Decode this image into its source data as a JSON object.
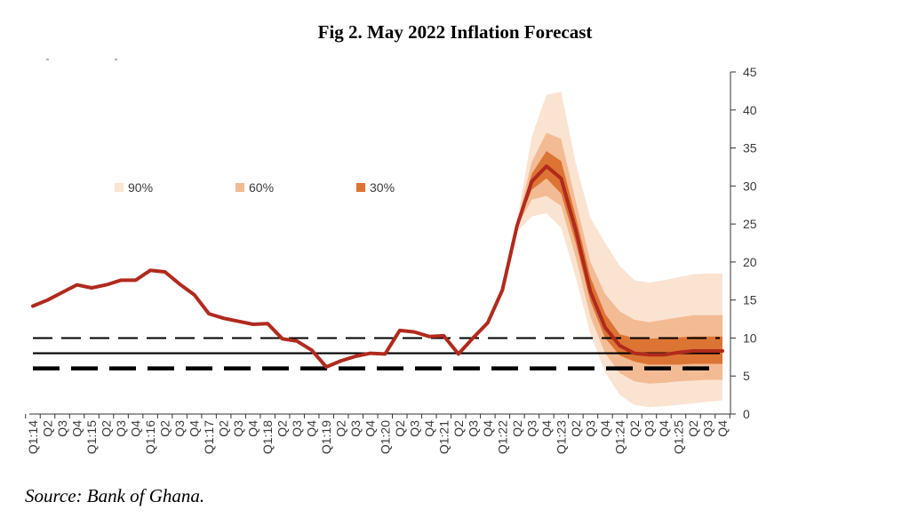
{
  "title": "Fig 2. May 2022 Inflation Forecast",
  "source": "Source: Bank of Ghana.",
  "chart_data": {
    "type": "line",
    "title": "Fig 2. May 2022 Inflation Forecast",
    "x_labels": [
      "Q1:14",
      "Q2",
      "Q3",
      "Q4",
      "Q1:15",
      "Q2",
      "Q3",
      "Q4",
      "Q1:16",
      "Q2",
      "Q3",
      "Q4",
      "Q1:17",
      "Q2",
      "Q3",
      "Q4",
      "Q1:18",
      "Q2",
      "Q3",
      "Q4",
      "Q1:19",
      "Q2",
      "Q3",
      "Q4",
      "Q1:20",
      "Q2",
      "Q3",
      "Q4",
      "Q1:21",
      "Q2",
      "Q3",
      "Q4",
      "Q1:22",
      "Q2",
      "Q3",
      "Q4",
      "Q1:23",
      "Q2",
      "Q3",
      "Q4",
      "Q1:24",
      "Q2",
      "Q3",
      "Q4",
      "Q1:25",
      "Q2",
      "Q3",
      "Q4"
    ],
    "ylim": [
      0,
      45
    ],
    "y_ticks": [
      0,
      5,
      10,
      15,
      20,
      25,
      30,
      35,
      40,
      45
    ],
    "y_axis_side": "right",
    "grid": false,
    "legend": {
      "placement": "top-left",
      "items": [
        {
          "label": "90%",
          "color": "#fbe3d2"
        },
        {
          "label": "60%",
          "color": "#f3bb94"
        },
        {
          "label": "30%",
          "color": "#dc7434"
        }
      ]
    },
    "series": [
      {
        "type": "line",
        "color": "#b02a1d",
        "values": [
          14.2,
          15.0,
          16.0,
          17.0,
          16.6,
          17.0,
          17.6,
          17.6,
          18.9,
          18.7,
          17.1,
          15.7,
          13.2,
          12.6,
          12.2,
          11.8,
          11.9,
          9.9,
          9.6,
          8.4,
          6.2,
          7.0,
          7.6,
          8.0,
          7.9,
          11.0,
          10.8,
          10.2,
          10.3,
          7.9,
          10.0,
          12.0,
          16.3,
          24.8,
          30.6,
          32.6,
          31.0,
          24.2,
          16.1,
          11.4,
          9.0,
          8.0,
          7.8,
          7.8,
          8.1,
          8.3,
          8.3,
          8.3
        ]
      }
    ],
    "fan_chart": {
      "start_index": 32,
      "bands": [
        {
          "label": "90%",
          "color": "#fbe3d2",
          "lower": [
            16.3,
            24.0,
            26.0,
            26.4,
            24.5,
            18.0,
            10.5,
            5.5,
            2.5,
            1.2,
            0.9,
            1.0,
            1.2,
            1.4,
            1.6,
            1.8
          ],
          "upper": [
            16.3,
            25.5,
            36.5,
            42.0,
            42.4,
            33.0,
            25.8,
            22.5,
            19.5,
            17.6,
            17.3,
            17.6,
            18.0,
            18.4,
            18.5,
            18.5
          ]
        },
        {
          "label": "60%",
          "color": "#f3bb94",
          "lower": [
            16.3,
            24.6,
            28.2,
            28.7,
            27.4,
            20.6,
            12.8,
            8.0,
            5.4,
            4.3,
            4.0,
            4.1,
            4.3,
            4.4,
            4.5,
            4.5
          ],
          "upper": [
            16.3,
            25.2,
            33.2,
            37.0,
            36.2,
            28.0,
            20.0,
            15.8,
            13.5,
            12.4,
            12.1,
            12.4,
            12.7,
            13.0,
            13.0,
            13.0
          ]
        },
        {
          "label": "30%",
          "color": "#dc7434",
          "lower": [
            16.3,
            24.8,
            29.5,
            31.0,
            29.0,
            22.5,
            14.8,
            10.0,
            7.7,
            6.9,
            6.5,
            6.5,
            6.5,
            6.6,
            6.6,
            6.6
          ],
          "upper": [
            16.3,
            25.0,
            31.6,
            34.6,
            33.3,
            26.0,
            18.0,
            13.2,
            10.5,
            10.0,
            9.9,
            10.0,
            10.1,
            10.2,
            10.2,
            10.2
          ]
        }
      ]
    },
    "reference_lines": [
      {
        "value": 10,
        "style": "dashed",
        "color": "#000000"
      },
      {
        "value": 8,
        "style": "solid",
        "color": "#000000"
      },
      {
        "value": 6,
        "style": "dashed-bold",
        "color": "#000000"
      }
    ]
  }
}
